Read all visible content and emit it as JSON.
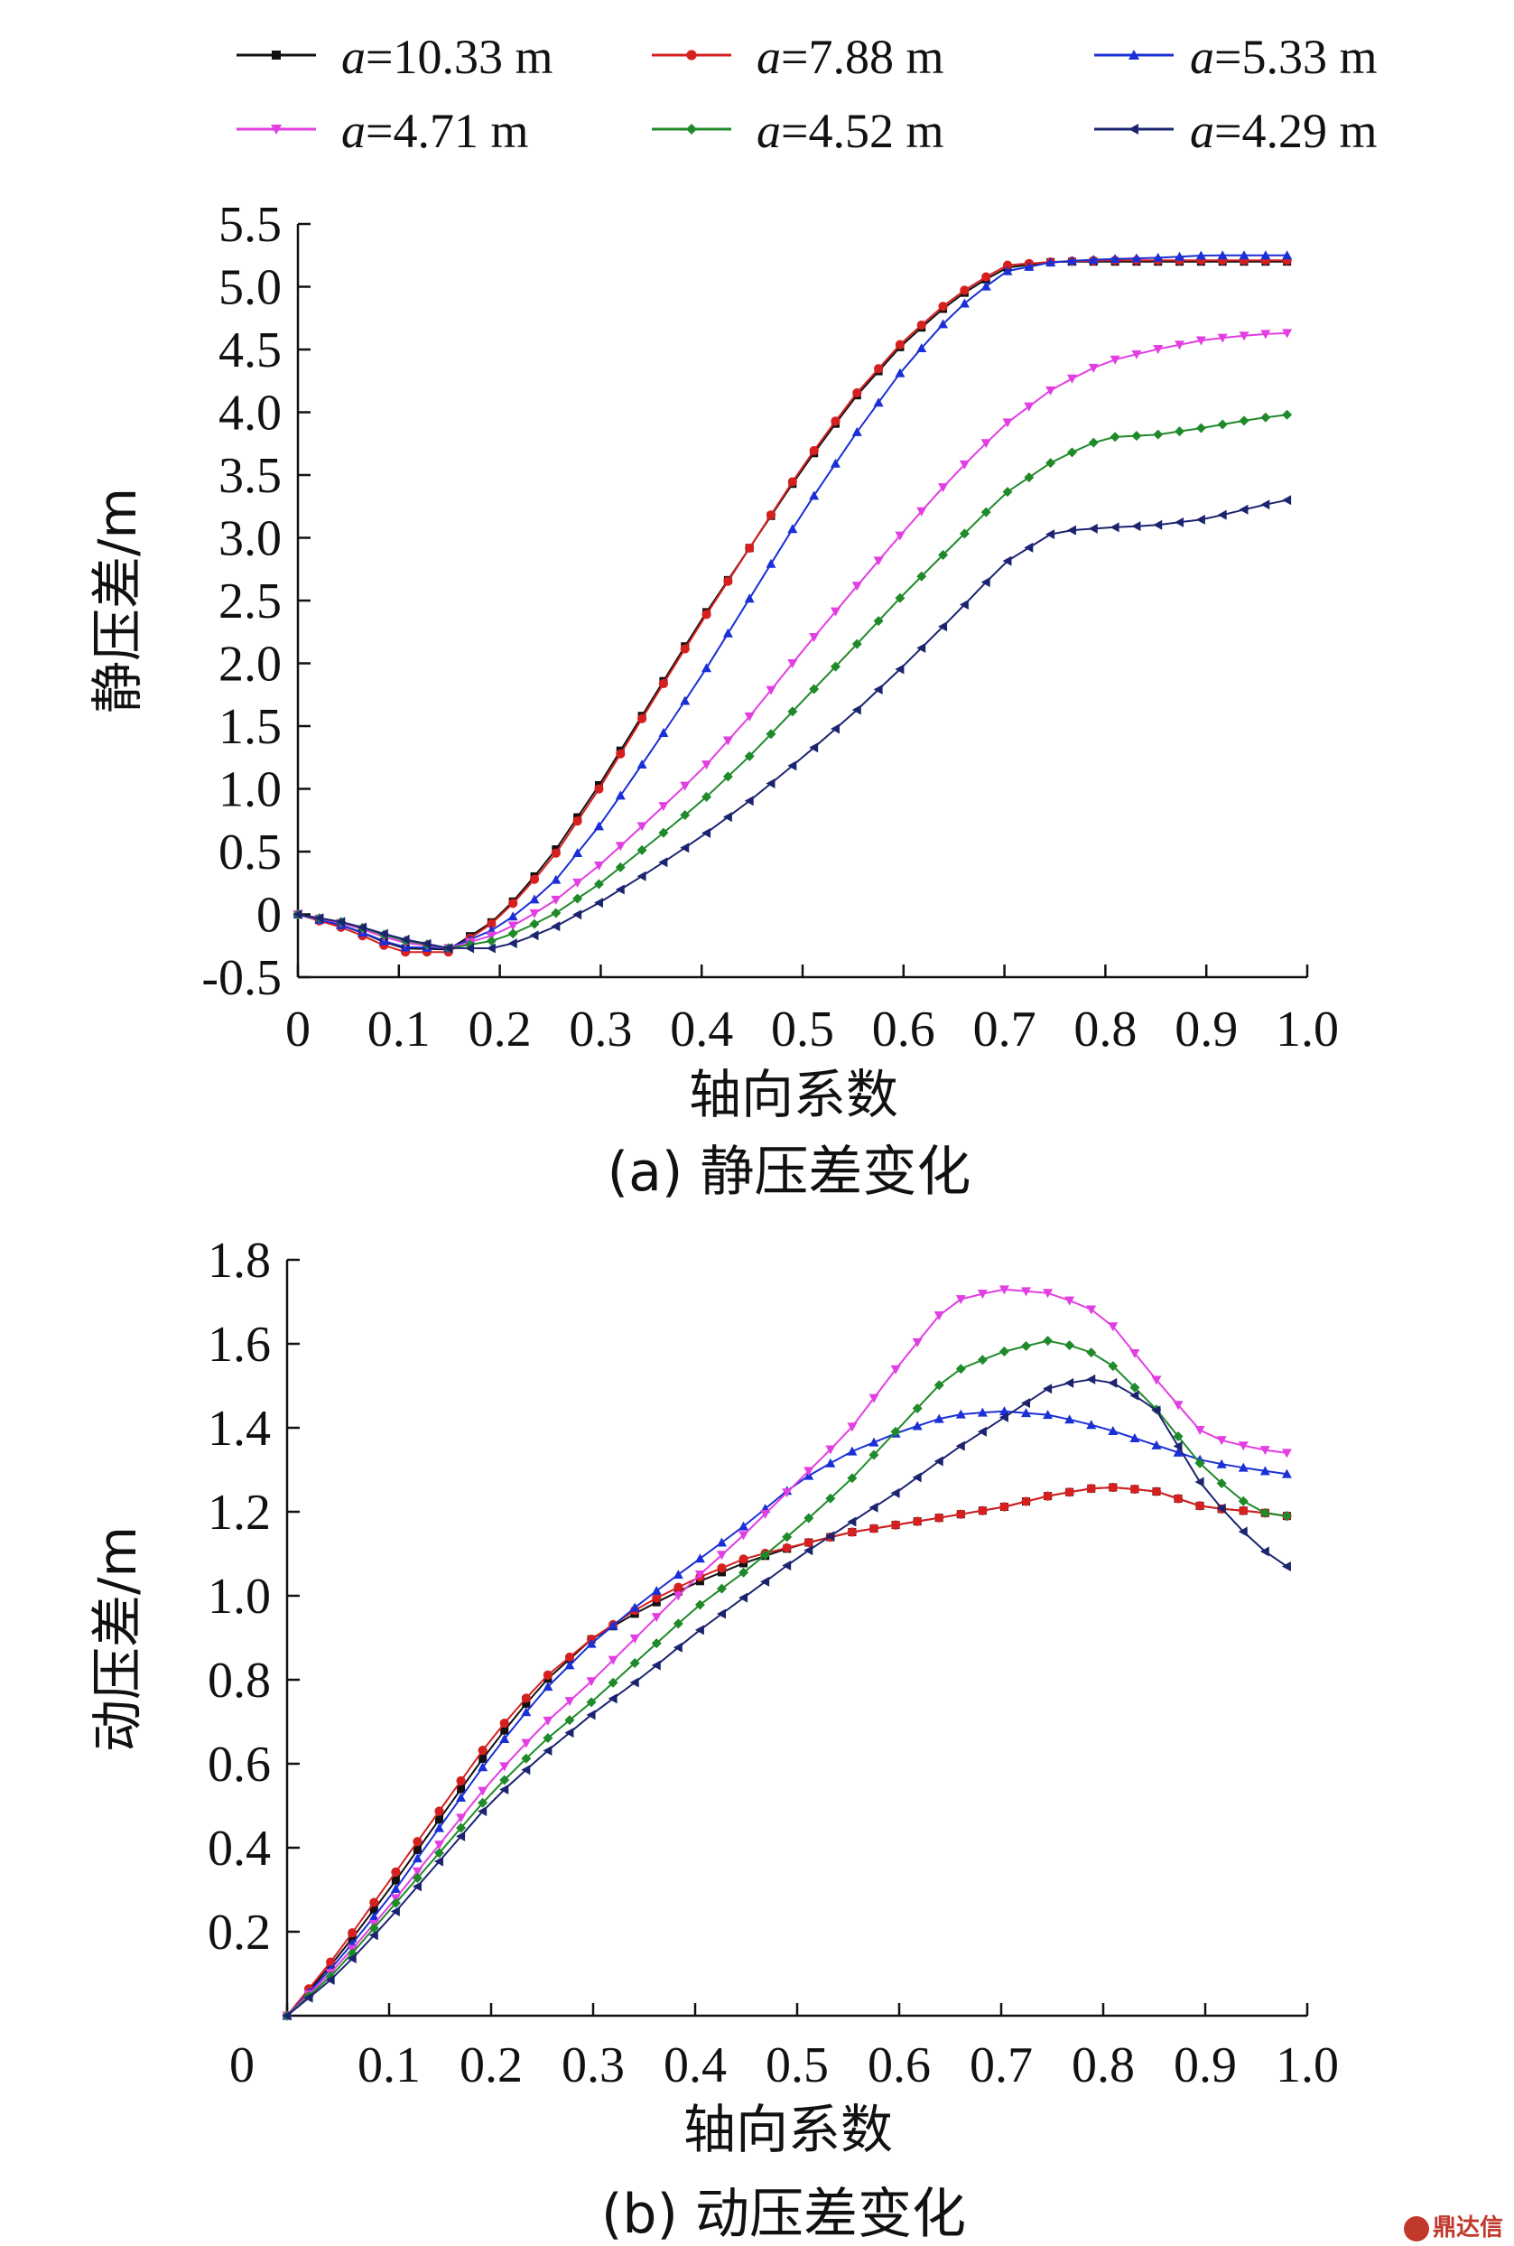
{
  "legend": [
    {
      "var": "a",
      "text": "=10.33 m",
      "color": "#111111",
      "marker": "square"
    },
    {
      "var": "a",
      "text": "=7.88 m",
      "color": "#d62020",
      "marker": "circle"
    },
    {
      "var": "a",
      "text": "=5.33 m",
      "color": "#1a2fd6",
      "marker": "triangle-up"
    },
    {
      "var": "a",
      "text": "=4.71 m",
      "color": "#e23ee2",
      "marker": "triangle-down"
    },
    {
      "var": "a",
      "text": "=4.52 m",
      "color": "#1f8a2a",
      "marker": "diamond"
    },
    {
      "var": "a",
      "text": "=4.29 m",
      "color": "#1c2470",
      "marker": "triangle-left"
    }
  ],
  "watermark": "鼎达信",
  "chart_data": [
    {
      "type": "line",
      "caption": "(a) 静压差变化",
      "xlabel": "轴向系数",
      "ylabel": "静压差/m",
      "xlim": [
        0,
        1.0
      ],
      "ylim": [
        -0.5,
        5.5
      ],
      "xticks": [
        "0",
        "0.1",
        "0.2",
        "0.3",
        "0.4",
        "0.5",
        "0.6",
        "0.7",
        "0.8",
        "0.9",
        "1.0"
      ],
      "yticks": [
        "-0.5",
        "0",
        "0.5",
        "1.0",
        "1.5",
        "2.0",
        "2.5",
        "3.0",
        "3.5",
        "4.0",
        "4.5",
        "5.0",
        "5.5"
      ],
      "x": [
        0,
        0.05,
        0.1,
        0.15,
        0.2,
        0.25,
        0.3,
        0.35,
        0.4,
        0.45,
        0.5,
        0.55,
        0.6,
        0.65,
        0.7,
        0.75,
        0.8,
        0.85,
        0.9,
        0.95,
        0.98
      ],
      "series": [
        {
          "name": "a=10.33 m",
          "values": [
            0,
            -0.1,
            -0.27,
            -0.28,
            -0.02,
            0.45,
            1.05,
            1.7,
            2.35,
            2.95,
            3.55,
            4.1,
            4.55,
            4.9,
            5.15,
            5.2,
            5.2,
            5.2,
            5.2,
            5.2,
            5.2
          ]
        },
        {
          "name": "a=7.88 m",
          "values": [
            0,
            -0.12,
            -0.3,
            -0.3,
            -0.03,
            0.42,
            1.02,
            1.68,
            2.33,
            2.95,
            3.57,
            4.12,
            4.57,
            4.92,
            5.17,
            5.2,
            5.21,
            5.21,
            5.21,
            5.21,
            5.21
          ]
        },
        {
          "name": "a=5.33 m",
          "values": [
            0,
            -0.1,
            -0.26,
            -0.27,
            -0.1,
            0.22,
            0.72,
            1.3,
            1.9,
            2.55,
            3.2,
            3.8,
            4.35,
            4.8,
            5.12,
            5.2,
            5.22,
            5.23,
            5.25,
            5.25,
            5.25
          ]
        },
        {
          "name": "a=4.71 m",
          "values": [
            0,
            -0.08,
            -0.22,
            -0.27,
            -0.15,
            0.08,
            0.4,
            0.77,
            1.15,
            1.6,
            2.1,
            2.58,
            3.05,
            3.5,
            3.9,
            4.2,
            4.4,
            4.5,
            4.58,
            4.62,
            4.63
          ]
        },
        {
          "name": "a=4.52 m",
          "values": [
            0,
            -0.07,
            -0.2,
            -0.27,
            -0.2,
            -0.02,
            0.25,
            0.57,
            0.9,
            1.28,
            1.7,
            2.12,
            2.55,
            2.95,
            3.35,
            3.62,
            3.8,
            3.82,
            3.88,
            3.95,
            3.98
          ]
        },
        {
          "name": "a=4.29 m",
          "values": [
            0,
            -0.07,
            -0.19,
            -0.27,
            -0.27,
            -0.12,
            0.1,
            0.35,
            0.62,
            0.92,
            1.25,
            1.6,
            1.98,
            2.38,
            2.8,
            3.05,
            3.08,
            3.1,
            3.15,
            3.25,
            3.3
          ]
        }
      ]
    },
    {
      "type": "line",
      "caption": "(b) 动压差变化",
      "xlabel": "轴向系数",
      "ylabel": "动压差/m",
      "xlim": [
        0,
        1.0
      ],
      "ylim": [
        0,
        1.8
      ],
      "xticks": [
        "0",
        "0.1",
        "0.2",
        "0.3",
        "0.4",
        "0.5",
        "0.6",
        "0.7",
        "0.8",
        "0.9",
        "1.0"
      ],
      "yticks": [
        "0.2",
        "0.4",
        "0.6",
        "0.8",
        "1.0",
        "1.2",
        "1.4",
        "1.6",
        "1.8"
      ],
      "x": [
        0,
        0.05,
        0.1,
        0.15,
        0.2,
        0.25,
        0.3,
        0.35,
        0.4,
        0.45,
        0.5,
        0.55,
        0.6,
        0.65,
        0.7,
        0.75,
        0.8,
        0.85,
        0.9,
        0.95,
        0.98
      ],
      "series": [
        {
          "name": "a=10.33 m",
          "values": [
            0,
            0.14,
            0.3,
            0.47,
            0.64,
            0.79,
            0.9,
            0.97,
            1.03,
            1.08,
            1.12,
            1.15,
            1.17,
            1.19,
            1.21,
            1.24,
            1.26,
            1.25,
            1.21,
            1.2,
            1.19
          ]
        },
        {
          "name": "a=7.88 m",
          "values": [
            0,
            0.15,
            0.32,
            0.49,
            0.66,
            0.8,
            0.9,
            0.98,
            1.04,
            1.09,
            1.12,
            1.15,
            1.17,
            1.19,
            1.21,
            1.24,
            1.26,
            1.25,
            1.21,
            1.2,
            1.19
          ]
        },
        {
          "name": "a=5.33 m",
          "values": [
            0,
            0.13,
            0.28,
            0.45,
            0.62,
            0.77,
            0.89,
            0.99,
            1.08,
            1.17,
            1.27,
            1.34,
            1.39,
            1.43,
            1.44,
            1.43,
            1.4,
            1.36,
            1.32,
            1.3,
            1.29
          ]
        },
        {
          "name": "a=4.71 m",
          "values": [
            0,
            0.12,
            0.26,
            0.41,
            0.56,
            0.69,
            0.8,
            0.92,
            1.04,
            1.15,
            1.27,
            1.39,
            1.55,
            1.7,
            1.73,
            1.72,
            1.67,
            1.52,
            1.38,
            1.35,
            1.34
          ]
        },
        {
          "name": "a=4.52 m",
          "values": [
            0,
            0.11,
            0.25,
            0.39,
            0.53,
            0.65,
            0.75,
            0.86,
            0.97,
            1.06,
            1.16,
            1.27,
            1.4,
            1.53,
            1.58,
            1.61,
            1.57,
            1.45,
            1.3,
            1.2,
            1.19
          ]
        },
        {
          "name": "a=4.29 m",
          "values": [
            0,
            0.1,
            0.23,
            0.37,
            0.51,
            0.62,
            0.72,
            0.81,
            0.91,
            1.0,
            1.09,
            1.17,
            1.25,
            1.34,
            1.42,
            1.5,
            1.52,
            1.45,
            1.25,
            1.12,
            1.07
          ]
        }
      ]
    }
  ]
}
